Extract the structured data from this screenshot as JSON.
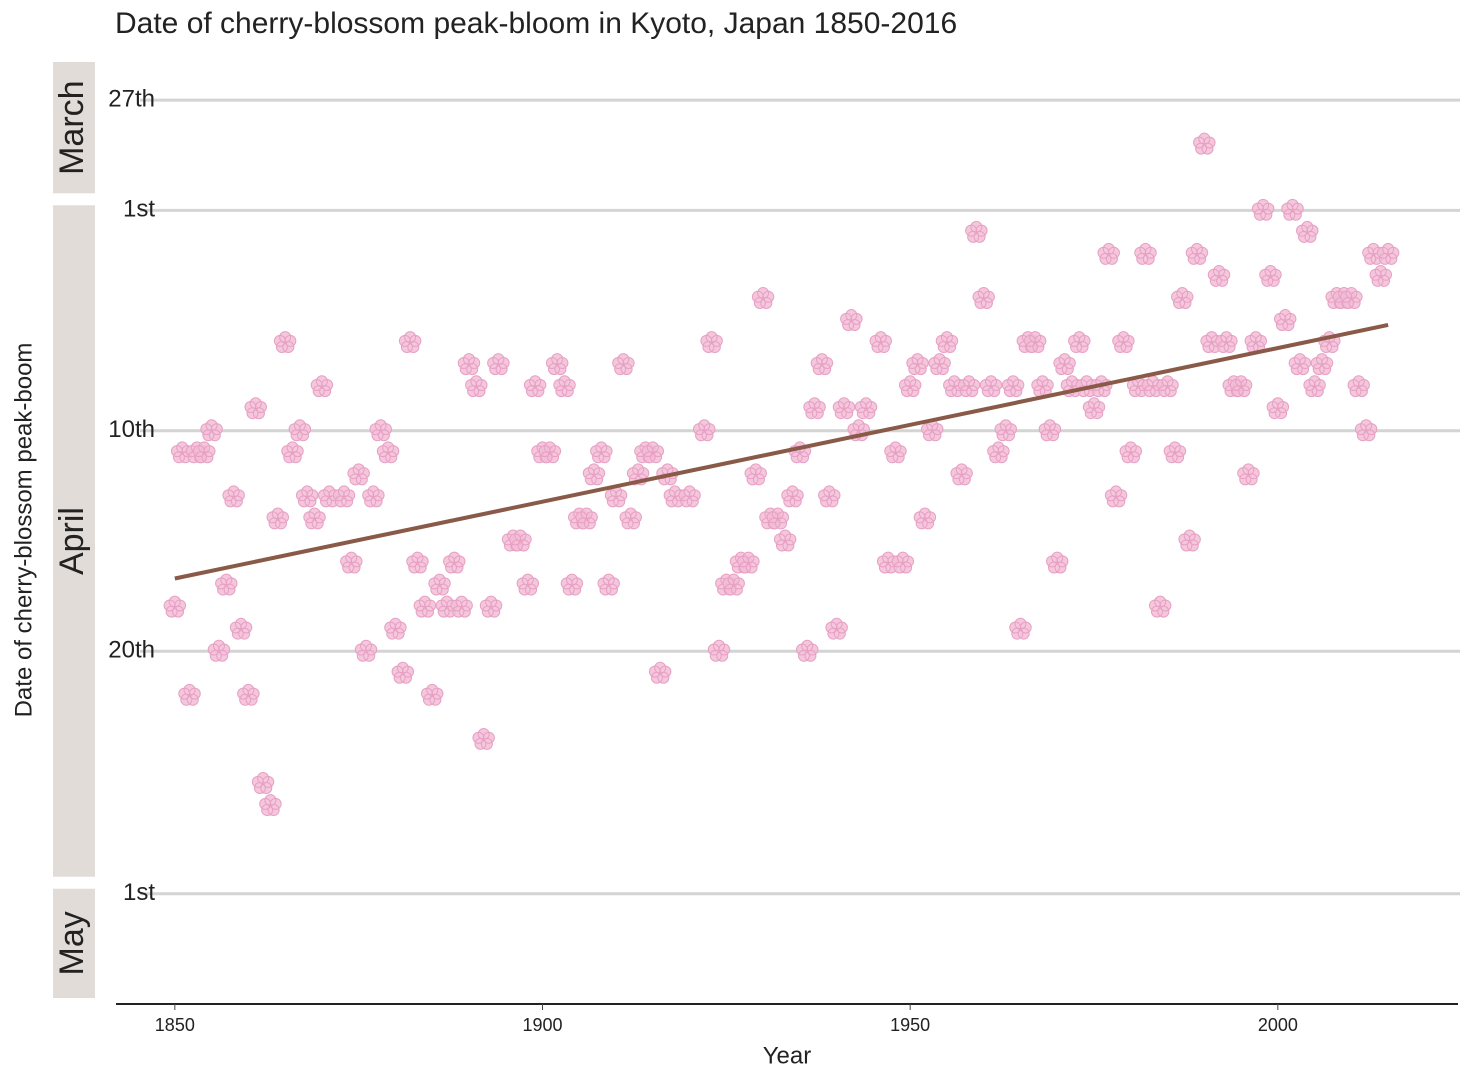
{
  "chart_data": {
    "type": "scatter",
    "title": "Date of cherry-blossom peak-bloom in Kyoto, Japan 1850-2016",
    "x_label": "Year",
    "y_label": "Date of cherry-blossom peak-boom",
    "xlim": [
      1842,
      2024.5
    ],
    "xticks": [
      1850,
      1900,
      1950,
      2000
    ],
    "ylim": [
      84,
      127
    ],
    "y_inverted": true,
    "yticks": [
      {
        "value": 86,
        "label": "27th"
      },
      {
        "value": 91,
        "label": "1st"
      },
      {
        "value": 101,
        "label": "10th"
      },
      {
        "value": 111,
        "label": "20th"
      },
      {
        "value": 122,
        "label": "1st"
      }
    ],
    "grid": true,
    "month_strips": [
      {
        "label": "March",
        "start": 84,
        "end": 90.5
      },
      {
        "label": "April",
        "start": 90.5,
        "end": 121.5
      },
      {
        "label": "May",
        "start": 121.5,
        "end": 127
      }
    ],
    "marker": "flower",
    "color": "#f2bdd6",
    "x": [
      1850,
      1851,
      1852,
      1853,
      1854,
      1855,
      1856,
      1857,
      1858,
      1859,
      1860,
      1861,
      1862,
      1863,
      1864,
      1865,
      1866,
      1867,
      1868,
      1869,
      1870,
      1871,
      1873,
      1874,
      1875,
      1876,
      1877,
      1878,
      1879,
      1880,
      1881,
      1882,
      1883,
      1884,
      1885,
      1886,
      1887,
      1888,
      1889,
      1890,
      1891,
      1892,
      1893,
      1894,
      1896,
      1897,
      1898,
      1899,
      1900,
      1901,
      1902,
      1903,
      1904,
      1905,
      1906,
      1907,
      1908,
      1909,
      1910,
      1911,
      1912,
      1913,
      1914,
      1915,
      1916,
      1917,
      1918,
      1920,
      1922,
      1923,
      1924,
      1925,
      1926,
      1927,
      1928,
      1929,
      1930,
      1931,
      1932,
      1933,
      1934,
      1935,
      1936,
      1937,
      1938,
      1939,
      1940,
      1941,
      1942,
      1943,
      1944,
      1946,
      1947,
      1948,
      1949,
      1950,
      1951,
      1952,
      1953,
      1954,
      1955,
      1956,
      1957,
      1958,
      1959,
      1960,
      1961,
      1962,
      1963,
      1964,
      1965,
      1966,
      1967,
      1968,
      1969,
      1970,
      1971,
      1972,
      1973,
      1974,
      1975,
      1976,
      1977,
      1978,
      1979,
      1980,
      1981,
      1982,
      1983,
      1984,
      1985,
      1986,
      1987,
      1988,
      1989,
      1990,
      1991,
      1992,
      1993,
      1994,
      1995,
      1996,
      1997,
      1998,
      1999,
      2000,
      2001,
      2002,
      2003,
      2004,
      2005,
      2006,
      2007,
      2008,
      2009,
      2010,
      2011,
      2012,
      2013,
      2014,
      2015
    ],
    "values": [
      109,
      102,
      113,
      102,
      102,
      101,
      111,
      108,
      104,
      110,
      113,
      100,
      117,
      118,
      105,
      97,
      102,
      101,
      104,
      105,
      99,
      104,
      104,
      107,
      103,
      111,
      104,
      101,
      102,
      110,
      112,
      97,
      107,
      109,
      113,
      108,
      109,
      107,
      109,
      98,
      99,
      115,
      109,
      98,
      106,
      106,
      108,
      99,
      102,
      102,
      98,
      99,
      108,
      105,
      105,
      103,
      102,
      108,
      104,
      98,
      105,
      103,
      102,
      102,
      112,
      103,
      104,
      104,
      101,
      97,
      111,
      108,
      108,
      107,
      107,
      103,
      95,
      105,
      105,
      106,
      104,
      102,
      111,
      100,
      98,
      104,
      110,
      100,
      96,
      101,
      100,
      97,
      107,
      102,
      107,
      99,
      98,
      105,
      101,
      98,
      97,
      99,
      103,
      99,
      92,
      95,
      99,
      102,
      101,
      99,
      110,
      97,
      97,
      99,
      101,
      107,
      98,
      99,
      97,
      99,
      100,
      99,
      93,
      104,
      97,
      102,
      99,
      93,
      99,
      109,
      99,
      102,
      95,
      106,
      93,
      88,
      97,
      94,
      97,
      99,
      99,
      103,
      97,
      91,
      94,
      100,
      96,
      91,
      98,
      92,
      99,
      98,
      97,
      95,
      95,
      95,
      99,
      101,
      93,
      94,
      93
    ],
    "trend": {
      "x": [
        1850,
        2015
      ],
      "values": [
        107.7,
        96.2
      ],
      "color": "#8a5a48"
    }
  }
}
